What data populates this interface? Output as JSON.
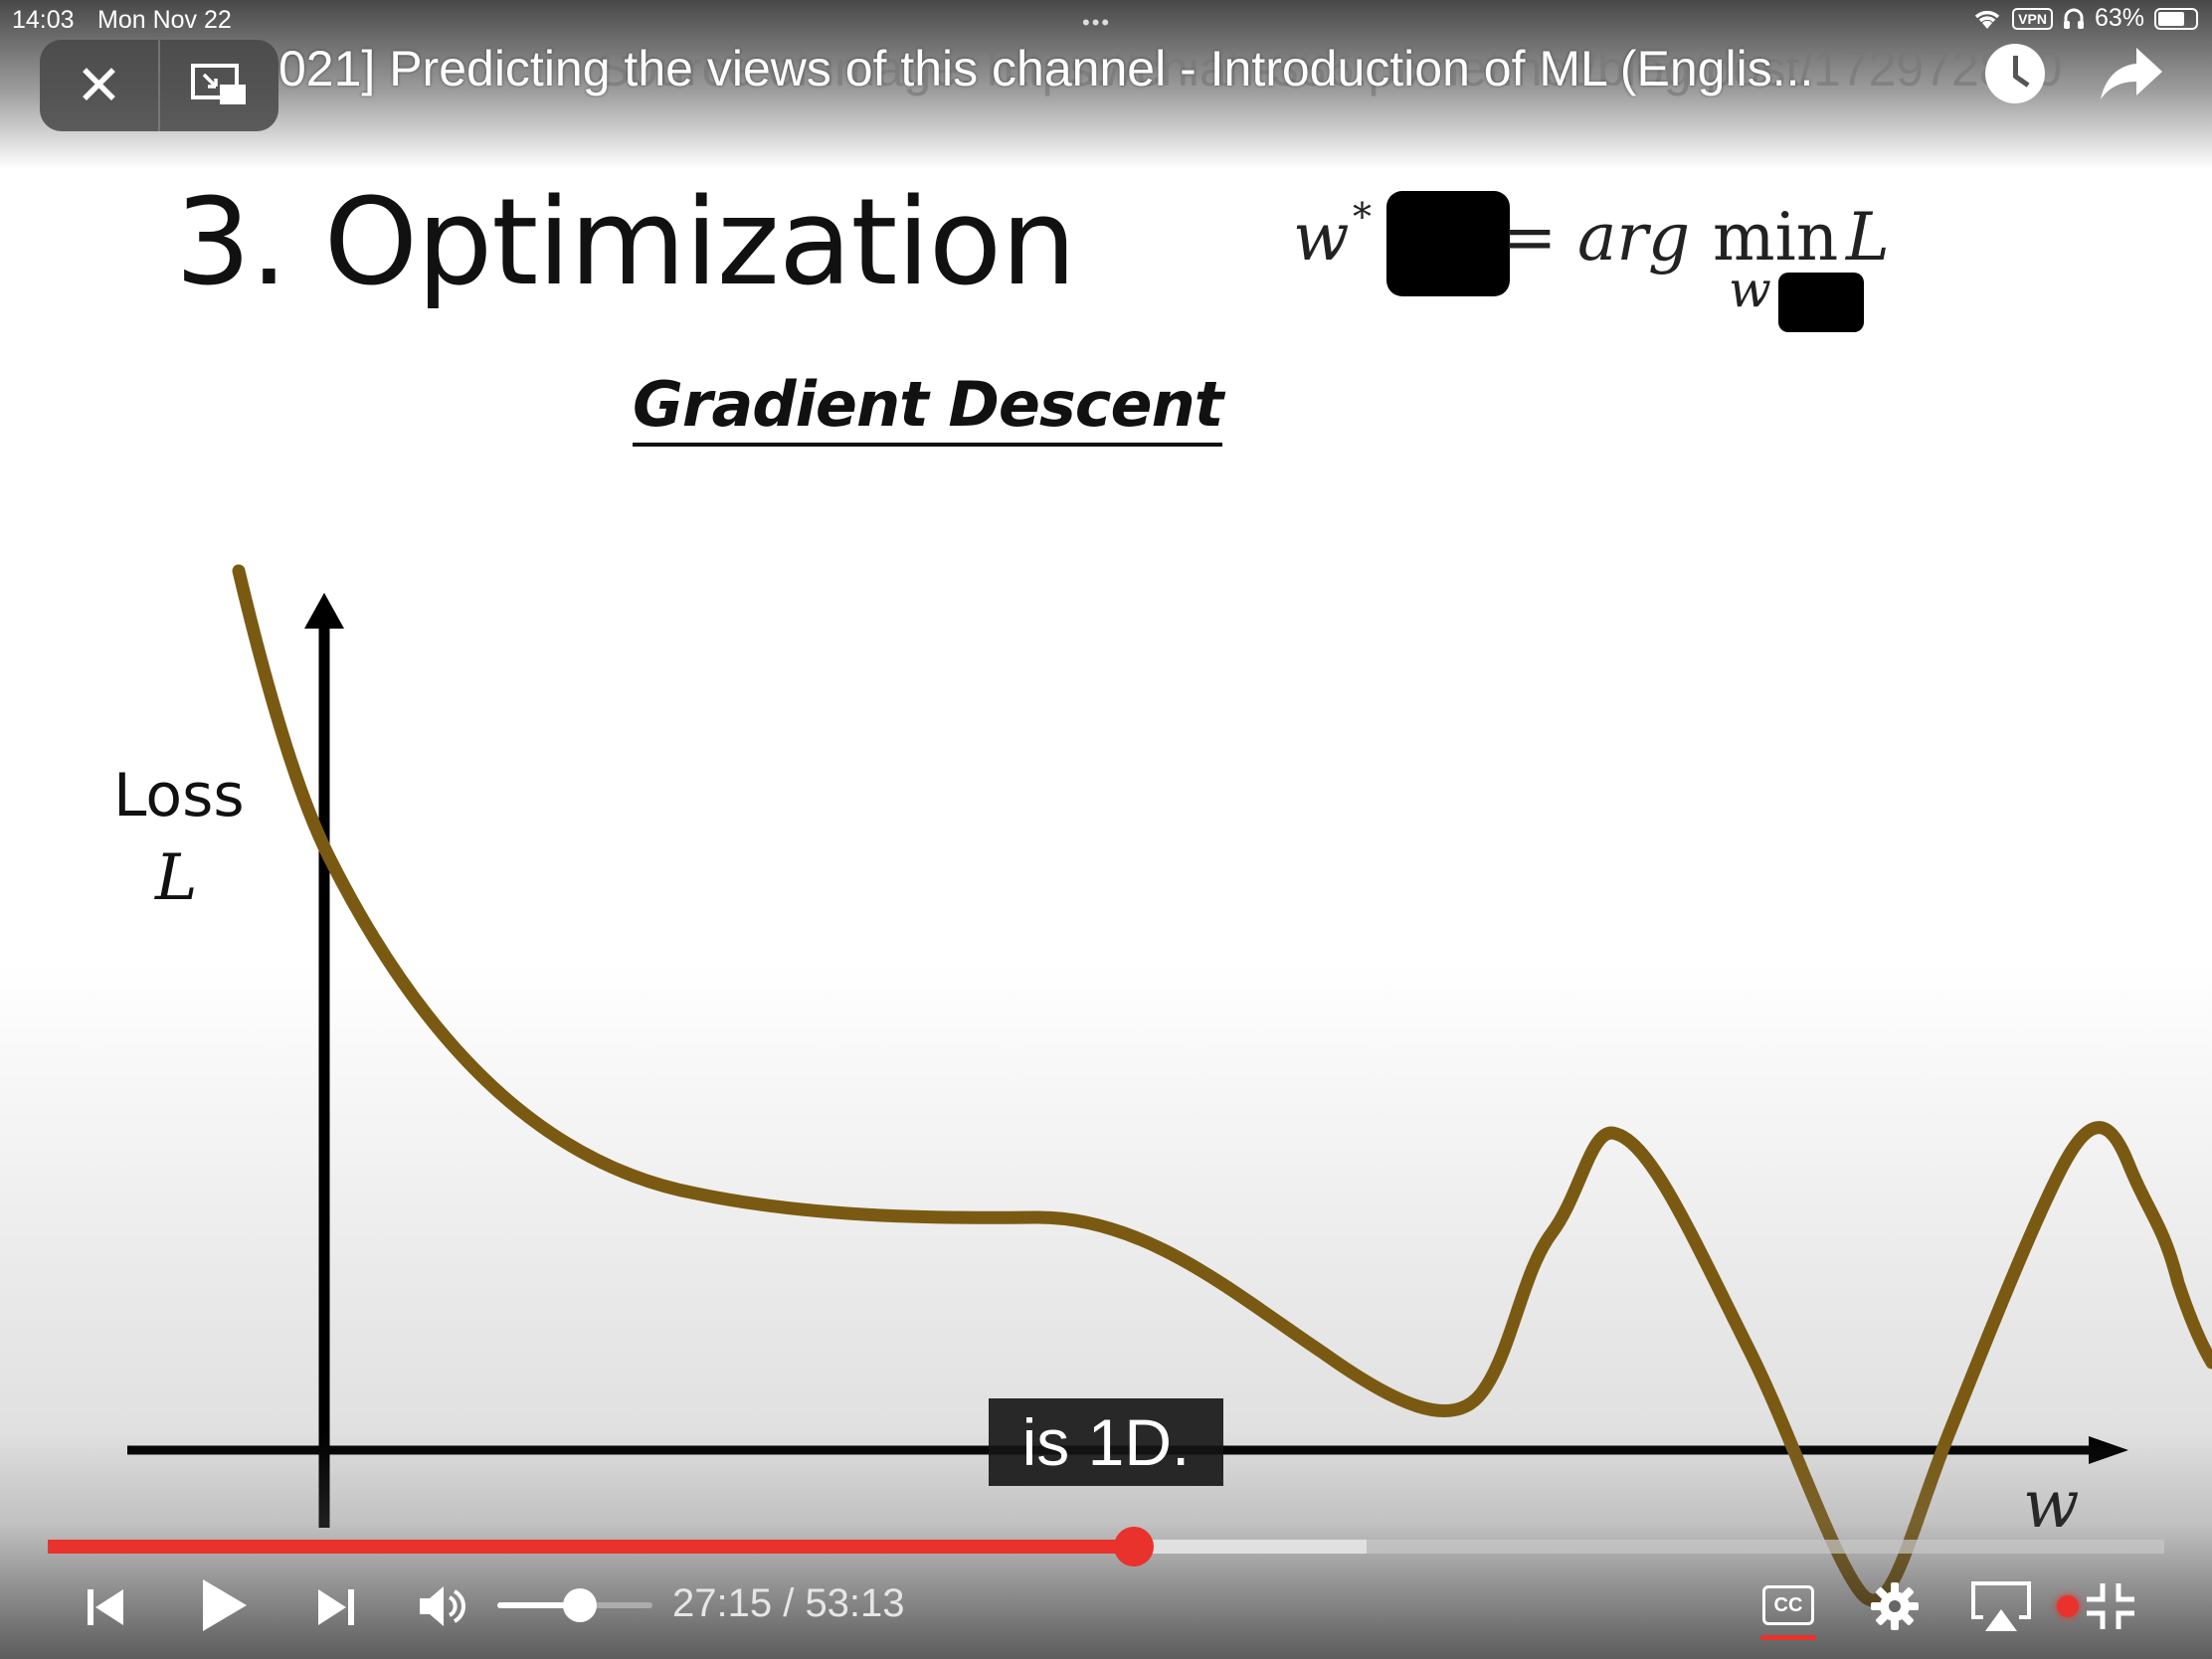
{
  "status_bar": {
    "time": "14:03",
    "date": "Mon Nov 22",
    "vpn": "VPN",
    "battery": "63%"
  },
  "pip": {
    "close_icon": "close-icon",
    "exit_pip_icon": "exit-pip-icon"
  },
  "video": {
    "title": "021] Predicting the views of this channel - Introduction of ML (Englis...",
    "watermark": "Source of image: https://chiah-386.pixnet.net/blog/post/172972850"
  },
  "slide": {
    "title": "3. Optimization",
    "subtitle": "Gradient Descent",
    "formula": {
      "w": "w",
      "star": "*",
      "eq": "=",
      "arg": "arg",
      "min": "min",
      "L": "L",
      "sub_w": "w"
    },
    "y_label_line1": "Loss",
    "y_label_line2": "L",
    "x_label": "w",
    "curve_color": "#7a5a12"
  },
  "caption": "is 1D.",
  "player": {
    "current_time": "27:15",
    "separator": " / ",
    "duration": "53:13",
    "time_text": "27:15 / 53:13",
    "progress_fraction": 0.513,
    "buffered_fraction": 0.623,
    "volume_fraction": 0.53,
    "accent_color": "#e8322b",
    "cc_label": "CC",
    "icons": [
      "skip-previous-icon",
      "play-icon",
      "skip-next-icon",
      "volume-icon",
      "settings-icon",
      "airplay-icon",
      "exit-fullscreen-icon"
    ]
  }
}
